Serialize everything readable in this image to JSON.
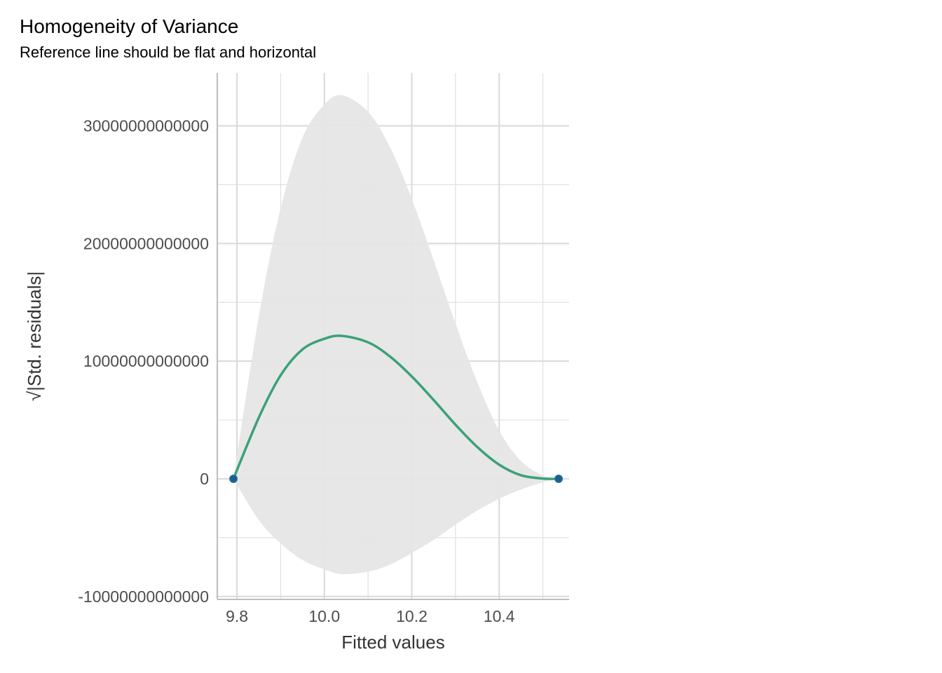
{
  "chart_data": {
    "type": "scatter",
    "title": "Homogeneity of Variance",
    "subtitle": "Reference line should be flat and horizontal",
    "xlabel": "Fitted values",
    "ylabel": "√|Std. residuals|",
    "xlim": [
      9.755,
      10.56
    ],
    "ylim": [
      -10250000000000,
      34500000000000
    ],
    "x_ticks": [
      9.8,
      10.0,
      10.2,
      10.4
    ],
    "x_tick_labels": [
      "9.8",
      "10.0",
      "10.2",
      "10.4"
    ],
    "y_ticks": [
      -10000000000000,
      0,
      10000000000000,
      20000000000000,
      30000000000000
    ],
    "y_tick_labels": [
      "-10000000000000",
      "0",
      "10000000000000",
      "20000000000000",
      "30000000000000"
    ],
    "grid": true,
    "points": [
      {
        "x": 9.792,
        "y": 0
      },
      {
        "x": 10.536,
        "y": 0
      }
    ],
    "smooth": {
      "x": [
        9.792,
        9.85,
        9.9,
        9.95,
        10.0,
        10.04,
        10.1,
        10.15,
        10.2,
        10.25,
        10.3,
        10.35,
        10.4,
        10.45,
        10.5,
        10.536
      ],
      "y": [
        0,
        5200000000000,
        8800000000000,
        11000000000000,
        11900000000000,
        12150000000000,
        11600000000000,
        10400000000000,
        8700000000000,
        6700000000000,
        4600000000000,
        2700000000000,
        1200000000000,
        300000000000,
        20000000000,
        0
      ],
      "lower": [
        0,
        -3500000000000,
        -5500000000000,
        -6900000000000,
        -7700000000000,
        -8100000000000,
        -7900000000000,
        -7300000000000,
        -6300000000000,
        -5200000000000,
        -3900000000000,
        -2700000000000,
        -1700000000000,
        -900000000000,
        -300000000000,
        0
      ],
      "upper": [
        0,
        13800000000000,
        23000000000000,
        29000000000000,
        31800000000000,
        32600000000000,
        31200000000000,
        28200000000000,
        23800000000000,
        18600000000000,
        13200000000000,
        8200000000000,
        4100000000000,
        1500000000000,
        300000000000,
        0
      ]
    },
    "colors": {
      "line": "#3aa178",
      "ribbon": "#e6e6e6",
      "point": "#1f5f8b",
      "grid": "#e0e0e0",
      "axis": "#bdbdbd"
    }
  }
}
